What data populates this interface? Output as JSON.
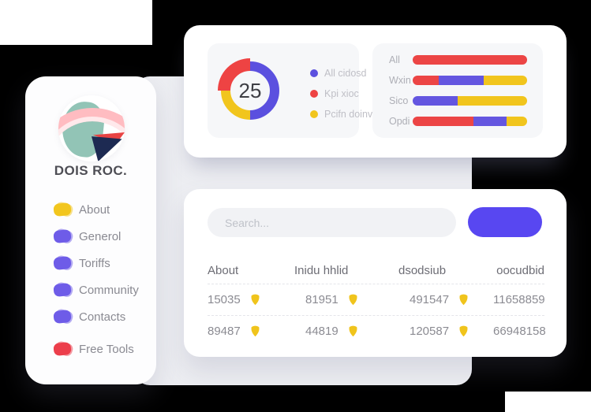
{
  "brand": {
    "title": "DOIS ROC."
  },
  "sidebar": {
    "items": [
      {
        "label": "About",
        "color": "#F2C61E"
      },
      {
        "label": "Generol",
        "color": "#6E5CE8"
      },
      {
        "label": "Toriffs",
        "color": "#6E5CE8"
      },
      {
        "label": "Community",
        "color": "#6E5CE8"
      },
      {
        "label": "Contacts",
        "color": "#6E5CE8"
      },
      {
        "label": "Free Tools",
        "color": "#EC3E4B",
        "separated": true
      }
    ]
  },
  "chart_data": [
    {
      "type": "pie",
      "subtype": "donut",
      "center_label": "25",
      "slices": [
        {
          "label": "All cidosd",
          "value": 50,
          "color": "#5B50DF"
        },
        {
          "label": "Pcifn doinvi",
          "value": 25,
          "color": "#F1C51D"
        },
        {
          "label": "Kpi xioc",
          "value": 25,
          "color": "#EE4343",
          "thick": true
        }
      ],
      "legend": [
        {
          "label": "All cidosd",
          "color": "#5B50DF"
        },
        {
          "label": "Kpi xioc",
          "color": "#EE4343"
        },
        {
          "label": "Pcifn doinvi",
          "color": "#F1C51D"
        }
      ],
      "legend_position": "right"
    },
    {
      "type": "bar",
      "orientation": "horizontal",
      "stacked": true,
      "unit": "percent",
      "categories": [
        "All",
        "Wxin",
        "Sico",
        "Opdi"
      ],
      "series": [
        {
          "name": "red",
          "color": "#EC4545",
          "values": [
            100,
            23,
            0,
            53
          ]
        },
        {
          "name": "purple",
          "color": "#6456E0",
          "values": [
            0,
            39,
            39,
            29
          ]
        },
        {
          "name": "yellow",
          "color": "#F1C51D",
          "values": [
            0,
            38,
            61,
            18
          ]
        }
      ],
      "xlim": [
        0,
        100
      ],
      "grid": false
    }
  ],
  "search": {
    "placeholder": "Search...",
    "button_text": ""
  },
  "table": {
    "headers": [
      "About",
      "Inidu hhlid",
      "dsodsiub",
      "oocudbid"
    ],
    "rows": [
      [
        {
          "value": "15035",
          "icon": true
        },
        {
          "value": "81951",
          "icon": true
        },
        {
          "value": "491547",
          "icon": true
        },
        {
          "value": "11658859",
          "icon": false
        }
      ],
      [
        {
          "value": "89487",
          "icon": true
        },
        {
          "value": "44819",
          "icon": true
        },
        {
          "value": "120587",
          "icon": true
        },
        {
          "value": "66948158",
          "icon": false
        }
      ]
    ]
  },
  "colors": {
    "accent_button": "#5847F1",
    "panel_bg": "#EDEEF2",
    "inner_panel_bg": "#F6F7F9",
    "table_icon": "#F0C41C"
  }
}
